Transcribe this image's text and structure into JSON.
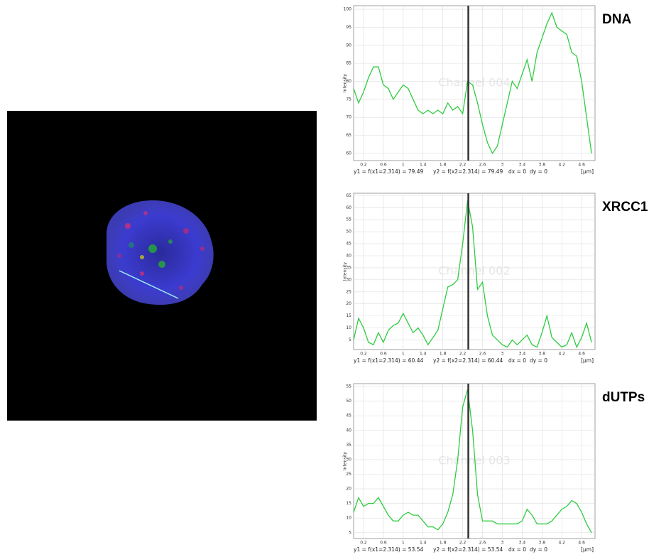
{
  "chart_data": [
    {
      "type": "line",
      "label": "DNA",
      "y_label": "Intensity",
      "watermark": "Channel 004",
      "footer": {
        "y1": "y1 = f(x1=2.314) = 79.49",
        "y2": "y2 = f(x2=2.314) = 79.49",
        "dx": "dx = 0",
        "dy": "dy = 0",
        "unit": "[µm]"
      },
      "cursor_x": 2.314,
      "grid": true,
      "x": [
        0,
        0.1,
        0.2,
        0.3,
        0.4,
        0.5,
        0.6,
        0.7,
        0.8,
        0.9,
        1,
        1.1,
        1.2,
        1.3,
        1.4,
        1.5,
        1.6,
        1.7,
        1.8,
        1.9,
        2,
        2.1,
        2.2,
        2.3,
        2.4,
        2.5,
        2.6,
        2.7,
        2.8,
        2.9,
        3,
        3.1,
        3.2,
        3.3,
        3.4,
        3.5,
        3.6,
        3.7,
        3.8,
        3.9,
        4,
        4.1,
        4.2,
        4.3,
        4.4,
        4.5,
        4.6,
        4.7,
        4.8
      ],
      "series": [
        {
          "color": "#2ecc40",
          "values": [
            78,
            74,
            77,
            81,
            84,
            84,
            79,
            78,
            75,
            77,
            79,
            78,
            75,
            72,
            71,
            72,
            71,
            72,
            71,
            74,
            72,
            73,
            71,
            80,
            79,
            74,
            68,
            63,
            60,
            62,
            68,
            74,
            80,
            78,
            82,
            86,
            80,
            88,
            92,
            96,
            99,
            95,
            94,
            93,
            88,
            87,
            80,
            70,
            60
          ]
        }
      ],
      "xlim": [
        0,
        4.87
      ],
      "xticks": [
        0.2,
        0.6,
        1,
        1.4,
        1.8,
        2.2,
        2.6,
        3,
        3.4,
        3.8,
        4.2,
        4.6
      ],
      "ylim": [
        58,
        101
      ],
      "yticks": [
        60,
        65,
        70,
        75,
        80,
        85,
        90,
        95,
        100
      ]
    },
    {
      "type": "line",
      "label": "XRCC1",
      "y_label": "Intensity",
      "watermark": "Channel 002",
      "footer": {
        "y1": "y1 = f(x1=2.314) = 60.44",
        "y2": "y2 = f(x2=2.314) = 60.44",
        "dx": "dx = 0",
        "dy": "dy = 0",
        "unit": "[µm]"
      },
      "cursor_x": 2.314,
      "grid": true,
      "x": [
        0,
        0.1,
        0.2,
        0.3,
        0.4,
        0.5,
        0.6,
        0.7,
        0.8,
        0.9,
        1,
        1.1,
        1.2,
        1.3,
        1.4,
        1.5,
        1.6,
        1.7,
        1.8,
        1.9,
        2,
        2.1,
        2.2,
        2.3,
        2.4,
        2.5,
        2.6,
        2.7,
        2.8,
        2.9,
        3,
        3.1,
        3.2,
        3.3,
        3.4,
        3.5,
        3.6,
        3.7,
        3.8,
        3.9,
        4,
        4.1,
        4.2,
        4.3,
        4.4,
        4.5,
        4.6,
        4.7,
        4.8
      ],
      "series": [
        {
          "color": "#2ecc40",
          "values": [
            5,
            14,
            10,
            4,
            3,
            8,
            4,
            9,
            11,
            12,
            16,
            12,
            8,
            10,
            7,
            3,
            6,
            9,
            18,
            27,
            28,
            30,
            45,
            63,
            52,
            26,
            29,
            15,
            7,
            5,
            3,
            2,
            5,
            3,
            5,
            7,
            3,
            2,
            8,
            15,
            6,
            4,
            2,
            3,
            8,
            2,
            6,
            12,
            4
          ]
        }
      ],
      "xlim": [
        0,
        4.87
      ],
      "xticks": [
        0.2,
        0.6,
        1,
        1.4,
        1.8,
        2.2,
        2.6,
        3,
        3.4,
        3.8,
        4.2,
        4.6
      ],
      "ylim": [
        1,
        66
      ],
      "yticks": [
        5,
        10,
        15,
        20,
        25,
        30,
        35,
        40,
        45,
        50,
        55,
        60,
        65
      ]
    },
    {
      "type": "line",
      "label": "dUTPs",
      "y_label": "Intensity",
      "watermark": "Channel 003",
      "footer": {
        "y1": "y1 = f(x1=2.314) = 53.54",
        "y2": "y2 = f(x2=2.314) = 53.54",
        "dx": "dx = 0",
        "dy": "dy = 0",
        "unit": "[µm]"
      },
      "cursor_x": 2.314,
      "grid": true,
      "x": [
        0,
        0.1,
        0.2,
        0.3,
        0.4,
        0.5,
        0.6,
        0.7,
        0.8,
        0.9,
        1,
        1.1,
        1.2,
        1.3,
        1.4,
        1.5,
        1.6,
        1.7,
        1.8,
        1.9,
        2,
        2.1,
        2.2,
        2.3,
        2.4,
        2.5,
        2.6,
        2.7,
        2.8,
        2.9,
        3,
        3.1,
        3.2,
        3.3,
        3.4,
        3.5,
        3.6,
        3.7,
        3.8,
        3.9,
        4,
        4.1,
        4.2,
        4.3,
        4.4,
        4.5,
        4.6,
        4.7,
        4.8
      ],
      "series": [
        {
          "color": "#2ecc40",
          "values": [
            12,
            17,
            14,
            15,
            15,
            17,
            14,
            11,
            9,
            9,
            11,
            12,
            11,
            11,
            9,
            7,
            7,
            6,
            8,
            12,
            18,
            30,
            48,
            54,
            40,
            18,
            9,
            9,
            9,
            8,
            8,
            8,
            8,
            8,
            9,
            13,
            11,
            8,
            8,
            8,
            9,
            11,
            13,
            14,
            16,
            15,
            12,
            8,
            5
          ]
        }
      ],
      "xlim": [
        0,
        4.87
      ],
      "xticks": [
        0.2,
        0.6,
        1,
        1.4,
        1.8,
        2.2,
        2.6,
        3,
        3.4,
        3.8,
        4.2,
        4.6
      ],
      "ylim": [
        3,
        56
      ],
      "yticks": [
        5,
        10,
        15,
        20,
        25,
        30,
        35,
        40,
        45,
        50,
        55
      ]
    }
  ]
}
